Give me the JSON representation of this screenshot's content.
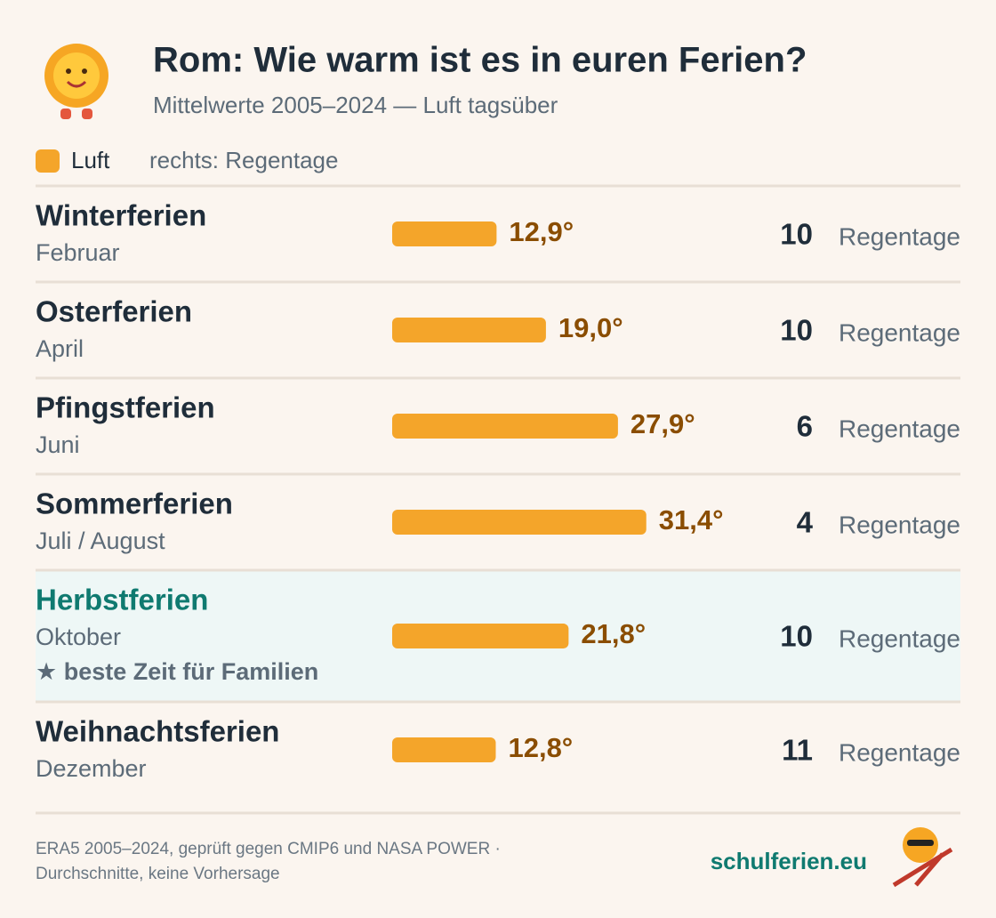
{
  "chart_data": {
    "type": "bar",
    "title": "Rom: Wie warm ist es in euren Ferien?",
    "subtitle": "Mittelwerte 2005–2024 — Luft tagsüber",
    "legend": {
      "label": "Luft",
      "note": "rechts: Regentage"
    },
    "categories": [
      "Winterferien",
      "Osterferien",
      "Pfingstferien",
      "Sommerferien",
      "Herbstferien",
      "Weihnachtsferien"
    ],
    "subtitles": [
      "Februar",
      "April",
      "Juni",
      "Juli / August",
      "Oktober",
      "Dezember"
    ],
    "notes": [
      null,
      null,
      null,
      null,
      "★ beste Zeit für Familien",
      null
    ],
    "values": [
      12.9,
      19.0,
      27.9,
      31.4,
      21.8,
      12.8
    ],
    "value_labels": [
      "12,9°",
      "19,0°",
      "27,9°",
      "31,4°",
      "21,8°",
      "12,8°"
    ],
    "color": "#f4a52a",
    "rain_days": [
      10,
      10,
      6,
      4,
      10,
      11
    ],
    "rain_unit": "Regentage",
    "footer": [
      "ERA5 2005–2024, geprüft gegen CMIP6 und NASA POWER ·",
      "Durchschnitte, keine Vorhersage"
    ],
    "brand": "schulferien.eu"
  }
}
